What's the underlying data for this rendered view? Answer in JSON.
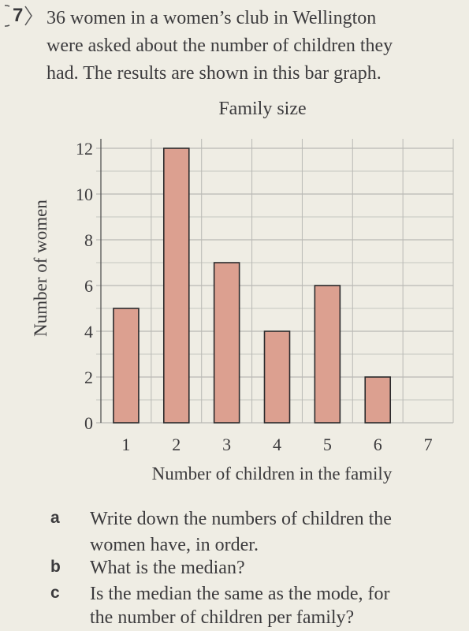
{
  "question": {
    "number": "7",
    "intro_lines": [
      "36 women in a women’s club in Wellington",
      "were asked about the number of children they",
      "had. The results are shown in this bar graph."
    ]
  },
  "chart_data": {
    "type": "bar",
    "title": "Family size",
    "xlabel": "Number of children in the family",
    "ylabel": "Number of women",
    "categories": [
      "1",
      "2",
      "3",
      "4",
      "5",
      "6",
      "7"
    ],
    "values": [
      5,
      12,
      7,
      4,
      6,
      2,
      0
    ],
    "ylim": [
      0,
      12
    ],
    "yticks": [
      "0",
      "2",
      "4",
      "6",
      "8",
      "10",
      "12"
    ],
    "grid": true,
    "bar_color": "#dca090",
    "bar_edge_color": "#2a2a2c",
    "grid_color": "#b9b9b5"
  },
  "parts": [
    {
      "letter": "a",
      "lines": [
        "Write down the numbers of children the",
        "women have, in order."
      ]
    },
    {
      "letter": "b",
      "lines": [
        "What is the median?"
      ]
    },
    {
      "letter": "c",
      "lines": [
        "Is the median the same as the mode, for",
        "the number of children per family?"
      ]
    }
  ]
}
